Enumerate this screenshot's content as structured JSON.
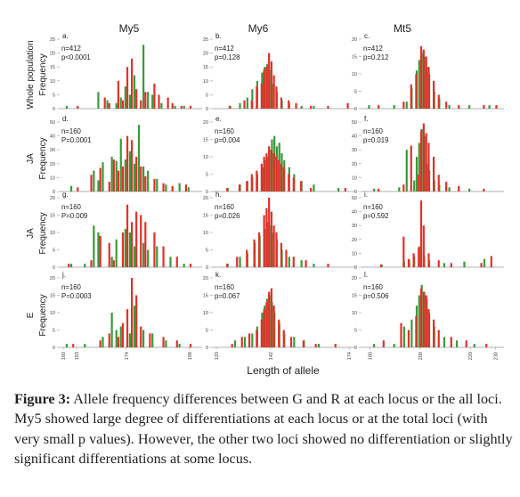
{
  "figure": {
    "col_titles": [
      "My5",
      "My6",
      "Mt5"
    ],
    "row_labels": [
      [
        "Whole population",
        "Frequency"
      ],
      [
        "JA",
        "Frequency"
      ],
      [
        "JA",
        "Frequency"
      ],
      [
        "E",
        "Frequency"
      ]
    ],
    "xlabel": "Length of allele",
    "colors": {
      "G": "#3a9a3a",
      "R": "#e0312a",
      "axis": "#999999"
    }
  },
  "chart_data": [
    {
      "type": "bar",
      "panel": "a.",
      "locus": "My5",
      "stat1": "n=412",
      "stat2": "p<0.0001",
      "ylim": [
        0,
        25
      ],
      "yticks": [
        0,
        5,
        10,
        15,
        20,
        25
      ],
      "xticks": [],
      "series": [
        {
          "name": "G",
          "x": [
            161,
            168,
            170,
            172,
            173,
            174,
            175,
            176,
            178,
            179,
            180,
            182,
            185,
            187
          ],
          "values": [
            1,
            6,
            3,
            2,
            4,
            8,
            5,
            12,
            23,
            6,
            5,
            2,
            1,
            1
          ]
        },
        {
          "name": "R",
          "x": [
            163,
            169,
            170,
            172,
            173,
            174,
            175,
            176,
            177,
            178,
            180,
            181,
            183,
            184,
            186,
            188
          ],
          "values": [
            1,
            4,
            2,
            10,
            3,
            15,
            18,
            7,
            3,
            6,
            9,
            5,
            4,
            2,
            1,
            1
          ]
        }
      ]
    },
    {
      "type": "bar",
      "panel": "b.",
      "locus": "My6",
      "stat1": "n=412",
      "stat2": "p=0.128",
      "ylim": [
        0,
        25
      ],
      "yticks": [
        0,
        5,
        10,
        15,
        20,
        25
      ],
      "xticks": [],
      "series": [
        {
          "name": "G",
          "x": [
            126,
            130,
            133,
            135,
            137,
            139,
            140,
            141,
            142,
            143,
            145,
            147,
            150,
            155,
            160
          ],
          "values": [
            1,
            2,
            4,
            7,
            10,
            13,
            15,
            16,
            14,
            9,
            6,
            3,
            2,
            1,
            1
          ]
        },
        {
          "name": "R",
          "x": [
            125,
            131,
            134,
            136,
            138,
            139,
            140,
            141,
            142,
            143,
            144,
            146,
            149,
            152,
            158,
            165,
            173
          ],
          "values": [
            1,
            3,
            3,
            8,
            9,
            14,
            15,
            20,
            17,
            12,
            8,
            4,
            3,
            2,
            1,
            1,
            2
          ]
        }
      ]
    },
    {
      "type": "bar",
      "panel": "c.",
      "locus": "Mt5",
      "stat1": "n=412",
      "stat2": "p=0.212",
      "ylim": [
        0,
        20
      ],
      "yticks": [
        0,
        5,
        10,
        15,
        20
      ],
      "xticks": [],
      "series": [
        {
          "name": "G",
          "x": [
            180,
            190,
            195,
            197,
            199,
            200,
            201,
            202,
            203,
            204,
            206,
            208,
            212,
            220,
            228
          ],
          "values": [
            1,
            1,
            2,
            6,
            11,
            14,
            16,
            15,
            12,
            10,
            5,
            3,
            1,
            1,
            1
          ]
        },
        {
          "name": "R",
          "x": [
            183,
            193,
            196,
            198,
            200,
            201,
            202,
            203,
            205,
            207,
            210,
            215,
            225,
            230
          ],
          "values": [
            1,
            2,
            7,
            10,
            18,
            17,
            15,
            12,
            8,
            4,
            2,
            1,
            1,
            1
          ]
        }
      ]
    },
    {
      "type": "bar",
      "panel": "d.",
      "locus": "My5",
      "stat1": "n=160",
      "stat2": "P=0.0001",
      "ylim": [
        0,
        50
      ],
      "yticks": [
        0,
        10,
        20,
        30,
        40,
        50
      ],
      "xticks": [],
      "series": [
        {
          "name": "G",
          "x": [
            162,
            167,
            168,
            169,
            171,
            172,
            173,
            174,
            175,
            176,
            177,
            178,
            179,
            181,
            183,
            186,
            188
          ],
          "values": [
            4,
            15,
            8,
            21,
            25,
            22,
            38,
            23,
            29,
            20,
            48,
            18,
            15,
            9,
            5,
            6,
            3
          ]
        },
        {
          "name": "R",
          "x": [
            163,
            166,
            168,
            170,
            171,
            172,
            173,
            174,
            175,
            176,
            177,
            178,
            180,
            182,
            184,
            187
          ],
          "values": [
            3,
            12,
            17,
            7,
            23,
            15,
            18,
            40,
            37,
            25,
            18,
            11,
            9,
            6,
            4,
            5
          ]
        }
      ]
    },
    {
      "type": "bar",
      "panel": "e.",
      "locus": "My6",
      "stat1": "n=160",
      "stat2": "p=0.004",
      "ylim": [
        0,
        20
      ],
      "yticks": [
        0,
        5,
        10,
        15,
        20
      ],
      "xticks": [],
      "series": [
        {
          "name": "G",
          "x": [
            125,
            130,
            133,
            135,
            137,
            139,
            140,
            141,
            142,
            143,
            144,
            145,
            146,
            147,
            148,
            150,
            152,
            155,
            160,
            170
          ],
          "values": [
            1,
            2,
            3,
            4,
            5,
            7,
            9,
            10,
            12,
            15,
            16,
            13,
            14,
            11,
            9,
            7,
            5,
            3,
            2,
            1
          ]
        },
        {
          "name": "R",
          "x": [
            124,
            129,
            132,
            134,
            136,
            138,
            139,
            140,
            141,
            142,
            143,
            144,
            145,
            146,
            147,
            149,
            151,
            154,
            158,
            172
          ],
          "values": [
            1,
            2,
            3,
            5,
            6,
            8,
            10,
            11,
            13,
            12,
            11,
            10,
            9,
            8,
            7,
            5,
            4,
            3,
            1,
            1
          ]
        }
      ]
    },
    {
      "type": "bar",
      "panel": "f.",
      "locus": "Mt5",
      "stat1": "n=160",
      "stat2": "p=0.019",
      "ylim": [
        0,
        50
      ],
      "yticks": [
        0,
        10,
        20,
        30,
        40,
        50
      ],
      "xticks": [],
      "series": [
        {
          "name": "G",
          "x": [
            182,
            192,
            195,
            198,
            199,
            200,
            201,
            202,
            203,
            204,
            206,
            208,
            212,
            220
          ],
          "values": [
            2,
            3,
            30,
            8,
            25,
            35,
            45,
            40,
            20,
            15,
            8,
            5,
            3,
            2
          ]
        },
        {
          "name": "R",
          "x": [
            183,
            193,
            196,
            199,
            200,
            201,
            202,
            203,
            205,
            207,
            210,
            215,
            225
          ],
          "values": [
            2,
            5,
            33,
            12,
            44,
            49,
            42,
            35,
            25,
            12,
            7,
            4,
            2
          ]
        }
      ]
    },
    {
      "type": "bar",
      "panel": "g.",
      "locus": "My5",
      "stat1": "n=160",
      "stat2": "P=0.009",
      "ylim": [
        0,
        20
      ],
      "yticks": [
        0,
        5,
        10,
        15,
        20
      ],
      "xticks": [],
      "series": [
        {
          "name": "G",
          "x": [
            162,
            165,
            167,
            168,
            171,
            172,
            174,
            175,
            176,
            178,
            179,
            181,
            184,
            187
          ],
          "values": [
            1,
            1,
            12,
            10,
            3,
            8,
            11,
            10,
            6,
            7,
            5,
            6,
            3,
            1
          ]
        },
        {
          "name": "R",
          "x": [
            161,
            166,
            168,
            170,
            171,
            173,
            174,
            175,
            176,
            177,
            178,
            180,
            182,
            185,
            188
          ],
          "values": [
            1,
            2,
            9,
            7,
            2,
            10,
            18,
            13,
            16,
            15,
            13,
            10,
            6,
            3,
            1
          ]
        }
      ]
    },
    {
      "type": "bar",
      "panel": "h.",
      "locus": "My6",
      "stat1": "n=160",
      "stat2": "p=0.026",
      "ylim": [
        0,
        20
      ],
      "yticks": [
        0,
        5,
        10,
        15,
        20
      ],
      "xticks": [],
      "series": [
        {
          "name": "G",
          "x": [
            125,
            130,
            133,
            136,
            138,
            140,
            141,
            142,
            143,
            145,
            147,
            150,
            155,
            160
          ],
          "values": [
            1,
            3,
            4,
            7,
            9,
            11,
            13,
            12,
            10,
            8,
            5,
            3,
            2,
            1
          ]
        },
        {
          "name": "R",
          "x": [
            124,
            128,
            132,
            135,
            137,
            139,
            140,
            141,
            142,
            143,
            144,
            146,
            148,
            151,
            156,
            165
          ],
          "values": [
            1,
            3,
            5,
            8,
            10,
            15,
            17,
            20,
            16,
            12,
            10,
            7,
            5,
            3,
            2,
            1
          ]
        }
      ]
    },
    {
      "type": "bar",
      "panel": "i.",
      "locus": "Mt5",
      "stat1": "n=160",
      "stat2": "p=0.592",
      "ylim": [
        0,
        50
      ],
      "yticks": [
        0,
        10,
        20,
        30,
        40,
        50
      ],
      "xticks": [],
      "series": [
        {
          "name": "G",
          "x": [
            185,
            194,
            196,
            198,
            200,
            202,
            204,
            210,
            218,
            226
          ],
          "values": [
            2,
            4,
            5,
            8,
            15,
            8,
            5,
            3,
            4,
            6
          ]
        },
        {
          "name": "R",
          "x": [
            184,
            193,
            195,
            197,
            199,
            200,
            201,
            203,
            207,
            212,
            224,
            228
          ],
          "values": [
            2,
            22,
            6,
            10,
            14,
            48,
            30,
            10,
            5,
            3,
            3,
            8
          ]
        }
      ]
    },
    {
      "type": "bar",
      "panel": "j.",
      "locus": "My5",
      "stat1": "n=160",
      "stat2": "P=0.0003",
      "ylim": [
        0,
        20
      ],
      "yticks": [
        0,
        5,
        10,
        15,
        20
      ],
      "xticks": [
        160,
        163,
        174,
        188
      ],
      "series": [
        {
          "name": "G",
          "x": [
            161,
            165,
            169,
            171,
            172,
            173,
            175,
            176,
            178,
            180,
            183,
            186
          ],
          "values": [
            1,
            1,
            3,
            10,
            5,
            6,
            4,
            12,
            5,
            4,
            2,
            1
          ]
        },
        {
          "name": "R",
          "x": [
            162,
            168,
            170,
            172,
            173,
            174,
            175,
            176,
            177,
            179,
            182,
            185,
            188
          ],
          "values": [
            1,
            2,
            4,
            3,
            7,
            11,
            20,
            15,
            6,
            4,
            3,
            2,
            1
          ]
        }
      ]
    },
    {
      "type": "bar",
      "panel": "k.",
      "locus": "My6",
      "stat1": "n=160",
      "stat2": "p=0.067",
      "ylim": [
        0,
        20
      ],
      "yticks": [
        0,
        5,
        10,
        15,
        20
      ],
      "xticks": [
        120,
        142,
        174
      ],
      "series": [
        {
          "name": "G",
          "x": [
            128,
            132,
            135,
            137,
            139,
            140,
            141,
            142,
            143,
            144,
            146,
            148,
            152,
            156,
            162
          ],
          "values": [
            2,
            3,
            4,
            6,
            10,
            12,
            14,
            15,
            13,
            10,
            7,
            4,
            3,
            2,
            1
          ]
        },
        {
          "name": "R",
          "x": [
            126,
            130,
            133,
            136,
            138,
            139,
            140,
            141,
            142,
            143,
            145,
            147,
            150,
            155,
            160,
            168
          ],
          "values": [
            1,
            3,
            4,
            5,
            8,
            11,
            13,
            16,
            17,
            12,
            8,
            5,
            3,
            2,
            1,
            1
          ]
        }
      ]
    },
    {
      "type": "bar",
      "panel": "l.",
      "locus": "Mt5",
      "stat1": "n=160",
      "stat2": "p=0.506",
      "ylim": [
        0,
        20
      ],
      "yticks": [
        0,
        5,
        10,
        15,
        20
      ],
      "xticks": [
        180,
        200,
        220,
        230
      ],
      "series": [
        {
          "name": "G",
          "x": [
            182,
            190,
            194,
            197,
            199,
            200,
            201,
            202,
            203,
            204,
            206,
            210,
            215,
            222
          ],
          "values": [
            1,
            1,
            6,
            8,
            12,
            15,
            18,
            16,
            14,
            10,
            6,
            3,
            2,
            1
          ]
        },
        {
          "name": "R",
          "x": [
            185,
            192,
            195,
            198,
            200,
            201,
            202,
            203,
            205,
            207,
            212,
            218,
            226
          ],
          "values": [
            2,
            7,
            5,
            9,
            17,
            16,
            15,
            11,
            8,
            5,
            3,
            2,
            1
          ]
        }
      ]
    }
  ],
  "caption": {
    "label": "Figure 3:",
    "text": "Allele frequency differences between G and R at each locus or the all loci. My5 showed large degree of differentiations at each locus or at the total loci (with very small p values). However, the other two loci showed no differentiation or slightly significant differentiations at some locus."
  }
}
